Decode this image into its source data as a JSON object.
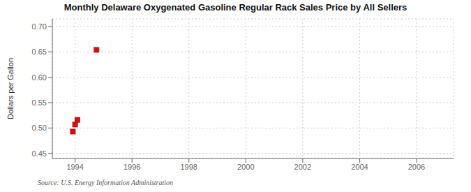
{
  "chart_data": {
    "type": "scatter",
    "title": "Monthly Delaware Oxygenated Gasoline Regular Rack Sales Price by All Sellers",
    "ylabel": "Dollars per Gallon",
    "annotation": "Source: U.S. Energy Information Administration",
    "x": [
      1993.92,
      1994.0,
      1994.08,
      1994.75
    ],
    "values": [
      0.493,
      0.507,
      0.516,
      0.654
    ],
    "color": "#cc1111",
    "marker": "square",
    "xlim": [
      1993.2,
      2007.3
    ],
    "ylim": [
      0.44,
      0.715
    ],
    "xticks": [
      1994,
      1996,
      1998,
      2000,
      2002,
      2004,
      2006
    ],
    "yticks": [
      0.45,
      {
        "value": 0.5,
        "label": "0.50"
      },
      0.55,
      {
        "value": 0.6,
        "label": "0.60"
      },
      0.65,
      {
        "value": 0.7,
        "label": "0.70"
      }
    ],
    "grid": true
  }
}
